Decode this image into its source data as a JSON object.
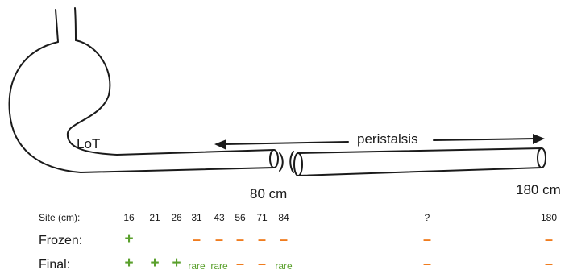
{
  "diagram": {
    "lot_label": "LoT",
    "peristalsis_label": "peristalsis",
    "marker_80": "80 cm",
    "marker_180": "180 cm"
  },
  "colors": {
    "positive": "#5aa02c",
    "negative": "#f07c1e",
    "rare": "#5aa02c",
    "ink": "#1a1a1a"
  },
  "table": {
    "site_label": "Site (cm):",
    "sites": [
      "16",
      "21",
      "26",
      "31",
      "43",
      "56",
      "71",
      "84",
      "?",
      "180"
    ],
    "rows": [
      {
        "label": "Frozen:",
        "results": [
          "+",
          "",
          "",
          "–",
          "–",
          "–",
          "–",
          "–",
          "–",
          "–"
        ]
      },
      {
        "label": "Final:",
        "results": [
          "+",
          "+",
          "+",
          "rare",
          "rare",
          "–",
          "–",
          "rare",
          "–",
          "–"
        ]
      }
    ]
  }
}
